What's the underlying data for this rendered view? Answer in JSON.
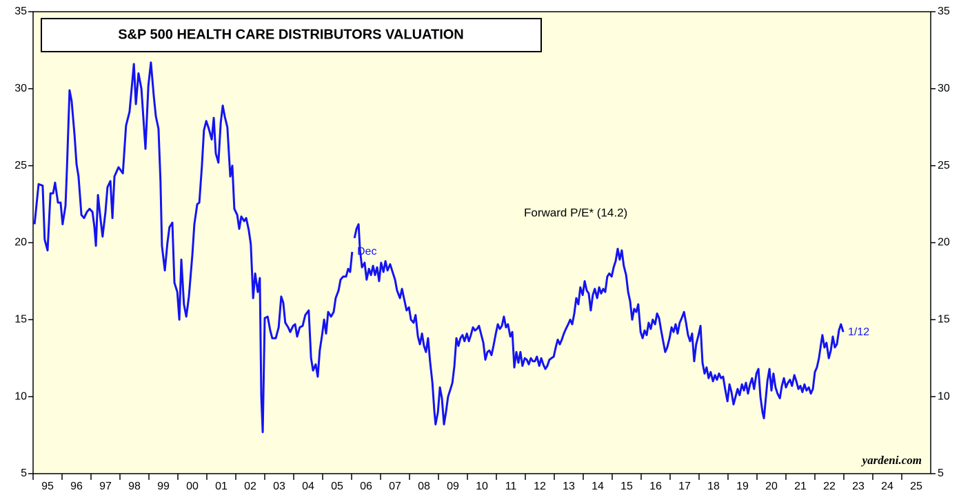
{
  "chart_data": {
    "type": "line",
    "title": "S&P 500 HEALTH CARE DISTRIBUTORS VALUATION",
    "annotations": [
      "Forward P/E* (14.2)",
      "Dec",
      "1/12",
      "yardeni.com"
    ],
    "xlim": [
      1995,
      2026
    ],
    "xticks": [
      {
        "value": 1995,
        "label": "95"
      },
      {
        "value": 1996,
        "label": "96"
      },
      {
        "value": 1997,
        "label": "97"
      },
      {
        "value": 1998,
        "label": "98"
      },
      {
        "value": 1999,
        "label": "99"
      },
      {
        "value": 2000,
        "label": "00"
      },
      {
        "value": 2001,
        "label": "01"
      },
      {
        "value": 2002,
        "label": "02"
      },
      {
        "value": 2003,
        "label": "03"
      },
      {
        "value": 2004,
        "label": "04"
      },
      {
        "value": 2005,
        "label": "05"
      },
      {
        "value": 2006,
        "label": "06"
      },
      {
        "value": 2007,
        "label": "07"
      },
      {
        "value": 2008,
        "label": "08"
      },
      {
        "value": 2009,
        "label": "09"
      },
      {
        "value": 2010,
        "label": "10"
      },
      {
        "value": 2011,
        "label": "11"
      },
      {
        "value": 2012,
        "label": "12"
      },
      {
        "value": 2013,
        "label": "13"
      },
      {
        "value": 2014,
        "label": "14"
      },
      {
        "value": 2015,
        "label": "15"
      },
      {
        "value": 2016,
        "label": "16"
      },
      {
        "value": 2017,
        "label": "17"
      },
      {
        "value": 2018,
        "label": "18"
      },
      {
        "value": 2019,
        "label": "19"
      },
      {
        "value": 2020,
        "label": "20"
      },
      {
        "value": 2021,
        "label": "21"
      },
      {
        "value": 2022,
        "label": "22"
      },
      {
        "value": 2023,
        "label": "23"
      },
      {
        "value": 2024,
        "label": "24"
      },
      {
        "value": 2025,
        "label": "25"
      }
    ],
    "ylim": [
      5,
      35
    ],
    "yticks": [
      5,
      10,
      15,
      20,
      25,
      30,
      35
    ],
    "y2lim": [
      5,
      35
    ],
    "y2ticks": [
      5,
      10,
      15,
      20,
      25,
      30,
      35
    ],
    "x": [
      1995.05,
      1995.19,
      1995.33,
      1995.4,
      1995.5,
      1995.6,
      1995.69,
      1995.76,
      1995.86,
      1995.95,
      1996.02,
      1996.12,
      1996.17,
      1996.26,
      1996.33,
      1996.43,
      1996.5,
      1996.57,
      1996.67,
      1996.76,
      1996.86,
      1996.95,
      1997.05,
      1997.12,
      1997.17,
      1997.24,
      1997.33,
      1997.4,
      1997.5,
      1997.57,
      1997.67,
      1997.74,
      1997.81,
      1997.95,
      1998.1,
      1998.21,
      1998.33,
      1998.48,
      1998.55,
      1998.64,
      1998.74,
      1998.88,
      1998.98,
      1999.07,
      1999.17,
      1999.24,
      1999.33,
      1999.4,
      1999.45,
      1999.55,
      1999.64,
      1999.71,
      1999.81,
      1999.88,
      1999.98,
      2000.05,
      2000.12,
      2000.21,
      2000.29,
      2000.38,
      2000.5,
      2000.57,
      2000.67,
      2000.74,
      2000.83,
      2000.9,
      2000.98,
      2001.07,
      2001.17,
      2001.24,
      2001.31,
      2001.4,
      2001.48,
      2001.55,
      2001.62,
      2001.71,
      2001.81,
      2001.88,
      2001.95,
      2002.05,
      2002.12,
      2002.19,
      2002.29,
      2002.36,
      2002.45,
      2002.52,
      2002.6,
      2002.67,
      2002.76,
      2002.83,
      2002.88,
      2002.93,
      2003.0,
      2003.1,
      2003.19,
      2003.26,
      2003.38,
      2003.48,
      2003.57,
      2003.64,
      2003.71,
      2003.81,
      2003.88,
      2003.98,
      2004.05,
      2004.12,
      2004.21,
      2004.31,
      2004.4,
      2004.52,
      2004.6,
      2004.67,
      2004.76,
      2004.83,
      2004.9,
      2004.98,
      2005.05,
      2005.12,
      2005.19,
      2005.29,
      2005.38,
      2005.45,
      2005.55,
      2005.62,
      2005.71,
      2005.81,
      2005.88,
      2005.95,
      2006.02,
      2006.06,
      2006.1,
      2006.17,
      2006.24,
      2006.29,
      2006.36,
      2006.45,
      2006.52,
      2006.6,
      2006.67,
      2006.74,
      2006.81,
      2006.88,
      2006.95,
      2007.02,
      2007.1,
      2007.17,
      2007.24,
      2007.33,
      2007.43,
      2007.5,
      2007.57,
      2007.67,
      2007.74,
      2007.83,
      2007.9,
      2007.98,
      2008.05,
      2008.14,
      2008.21,
      2008.29,
      2008.36,
      2008.43,
      2008.5,
      2008.57,
      2008.64,
      2008.71,
      2008.79,
      2008.86,
      2008.9,
      2008.98,
      2009.05,
      2009.12,
      2009.19,
      2009.26,
      2009.33,
      2009.4,
      2009.48,
      2009.55,
      2009.62,
      2009.69,
      2009.76,
      2009.83,
      2009.9,
      2009.98,
      2010.05,
      2010.12,
      2010.19,
      2010.26,
      2010.33,
      2010.4,
      2010.48,
      2010.55,
      2010.62,
      2010.69,
      2010.76,
      2010.83,
      2010.9,
      2010.98,
      2011.05,
      2011.12,
      2011.19,
      2011.26,
      2011.33,
      2011.4,
      2011.48,
      2011.55,
      2011.62,
      2011.69,
      2011.76,
      2011.83,
      2011.9,
      2011.98,
      2012.05,
      2012.12,
      2012.19,
      2012.26,
      2012.33,
      2012.4,
      2012.48,
      2012.55,
      2012.62,
      2012.69,
      2012.76,
      2012.83,
      2012.9,
      2012.98,
      2013.05,
      2013.12,
      2013.19,
      2013.26,
      2013.33,
      2013.4,
      2013.48,
      2013.55,
      2013.62,
      2013.69,
      2013.76,
      2013.83,
      2013.9,
      2013.98,
      2014.05,
      2014.12,
      2014.19,
      2014.26,
      2014.33,
      2014.4,
      2014.48,
      2014.55,
      2014.62,
      2014.69,
      2014.76,
      2014.83,
      2014.9,
      2014.98,
      2015.05,
      2015.12,
      2015.19,
      2015.26,
      2015.33,
      2015.4,
      2015.48,
      2015.55,
      2015.62,
      2015.69,
      2015.76,
      2015.83,
      2015.9,
      2015.98,
      2016.05,
      2016.12,
      2016.19,
      2016.26,
      2016.33,
      2016.4,
      2016.48,
      2016.55,
      2016.62,
      2016.69,
      2016.76,
      2016.83,
      2016.9,
      2016.98,
      2017.05,
      2017.12,
      2017.19,
      2017.26,
      2017.33,
      2017.4,
      2017.48,
      2017.55,
      2017.62,
      2017.69,
      2017.76,
      2017.83,
      2017.9,
      2017.98,
      2018.05,
      2018.12,
      2018.19,
      2018.26,
      2018.33,
      2018.4,
      2018.48,
      2018.55,
      2018.62,
      2018.69,
      2018.76,
      2018.83,
      2018.9,
      2018.98,
      2019.05,
      2019.12,
      2019.19,
      2019.26,
      2019.33,
      2019.4,
      2019.48,
      2019.55,
      2019.62,
      2019.69,
      2019.76,
      2019.83,
      2019.9,
      2019.98,
      2020.05,
      2020.12,
      2020.19,
      2020.24,
      2020.29,
      2020.36,
      2020.43,
      2020.5,
      2020.57,
      2020.64,
      2020.71,
      2020.79,
      2020.86,
      2020.93,
      2021.0,
      2021.07,
      2021.14,
      2021.21,
      2021.29,
      2021.36,
      2021.43,
      2021.5,
      2021.57,
      2021.64,
      2021.71,
      2021.79,
      2021.86,
      2021.93,
      2022.0,
      2022.07,
      2022.14,
      2022.21,
      2022.26,
      2022.33,
      2022.4,
      2022.48,
      2022.55,
      2022.62,
      2022.69,
      2022.76,
      2022.83,
      2022.9,
      2022.98
    ],
    "series": [
      {
        "name": "Forward P/E",
        "color": "#1414f0",
        "values": [
          21.2,
          23.8,
          23.7,
          20.2,
          19.5,
          23.2,
          23.2,
          23.9,
          22.6,
          22.6,
          21.2,
          22.4,
          24.8,
          29.9,
          29.2,
          27.0,
          25.1,
          24.3,
          21.8,
          21.6,
          22.0,
          22.2,
          22.0,
          21.0,
          19.8,
          23.1,
          21.5,
          20.4,
          22.0,
          23.6,
          24.0,
          21.6,
          24.3,
          24.9,
          24.5,
          27.6,
          28.5,
          31.6,
          29.0,
          31.0,
          30.0,
          26.1,
          30.2,
          31.7,
          29.5,
          28.2,
          27.4,
          24.0,
          19.8,
          18.2,
          20.0,
          21.0,
          21.3,
          17.4,
          16.8,
          15.0,
          18.9,
          16.0,
          15.2,
          16.5,
          19.2,
          21.2,
          22.5,
          22.6,
          25.0,
          27.3,
          27.9,
          27.4,
          26.7,
          28.1,
          25.8,
          25.2,
          27.8,
          28.9,
          28.2,
          27.5,
          24.3,
          25.0,
          22.2,
          21.8,
          20.9,
          21.7,
          21.4,
          21.6,
          20.8,
          19.9,
          16.4,
          18.0,
          16.8,
          17.7,
          10.0,
          7.7,
          15.1,
          15.2,
          14.3,
          13.8,
          13.8,
          14.5,
          16.5,
          16.1,
          14.8,
          14.5,
          14.2,
          14.6,
          14.7,
          13.9,
          14.5,
          14.6,
          15.3,
          15.6,
          12.5,
          11.7,
          12.1,
          11.3,
          13.0,
          14.0,
          15.0,
          14.1,
          15.5,
          15.2,
          15.5,
          16.4,
          16.9,
          17.6,
          17.8,
          17.8,
          18.3,
          18.1,
          19.4,
          null,
          20.3,
          20.9,
          21.2,
          19.5,
          18.4,
          18.7,
          17.6,
          18.3,
          17.9,
          18.5,
          17.9,
          18.4,
          17.5,
          18.7,
          18.1,
          18.8,
          18.2,
          18.6,
          18.0,
          17.6,
          16.9,
          16.4,
          17.0,
          16.2,
          15.6,
          15.8,
          15.0,
          14.8,
          15.3,
          13.9,
          13.4,
          14.1,
          13.3,
          12.9,
          13.8,
          12.3,
          10.9,
          9.0,
          8.2,
          9.0,
          10.6,
          9.9,
          8.2,
          9.0,
          10.0,
          10.4,
          10.9,
          12.0,
          13.8,
          13.3,
          13.8,
          14.0,
          13.6,
          14.1,
          13.6,
          14.0,
          14.5,
          14.3,
          14.4,
          14.6,
          14.0,
          13.5,
          12.4,
          12.9,
          13.0,
          12.7,
          13.3,
          14.1,
          14.7,
          14.4,
          14.6,
          15.2,
          14.5,
          14.7,
          13.9,
          14.2,
          11.9,
          12.9,
          12.2,
          12.9,
          12.0,
          12.5,
          12.4,
          12.1,
          12.5,
          12.3,
          12.3,
          12.6,
          12.0,
          12.5,
          12.1,
          11.8,
          12.0,
          12.4,
          12.5,
          12.6,
          13.2,
          13.7,
          13.4,
          13.7,
          14.1,
          14.4,
          14.7,
          15.0,
          14.7,
          15.4,
          16.4,
          16.0,
          17.1,
          16.6,
          17.5,
          16.9,
          16.7,
          15.6,
          16.6,
          17.0,
          16.4,
          17.1,
          16.7,
          17.0,
          16.8,
          17.8,
          18.0,
          17.8,
          18.4,
          18.8,
          19.6,
          18.9,
          19.5,
          18.5,
          17.9,
          16.8,
          16.2,
          15.0,
          15.7,
          15.5,
          16.0,
          14.2,
          13.8,
          14.3,
          14.0,
          14.8,
          14.4,
          15.0,
          14.7,
          15.4,
          15.1,
          14.3,
          13.6,
          12.9,
          13.2,
          13.8,
          14.5,
          14.2,
          14.7,
          14.1,
          14.8,
          15.1,
          15.5,
          14.8,
          14.0,
          13.6,
          14.1,
          12.3,
          13.4,
          14.0,
          14.6,
          12.2,
          11.5,
          11.9,
          11.2,
          11.6,
          11.0,
          11.4,
          11.1,
          11.5,
          11.2,
          11.3,
          10.5,
          9.7,
          10.8,
          10.3,
          9.5,
          10.0,
          10.5,
          10.1,
          10.8,
          10.4,
          10.9,
          10.2,
          10.8,
          11.2,
          10.5,
          11.5,
          11.8,
          10.0,
          9.0,
          8.6,
          9.6,
          11.0,
          11.8,
          10.4,
          11.5,
          10.6,
          10.2,
          9.9,
          10.7,
          11.2,
          10.6,
          10.9,
          11.1,
          10.7,
          11.4,
          11.0,
          10.5,
          10.7,
          10.3,
          10.8,
          10.4,
          10.6,
          10.2,
          10.5,
          11.6,
          11.9,
          12.5,
          13.4,
          14.0,
          13.2,
          13.5,
          12.5,
          13.0,
          13.9,
          13.2,
          13.4,
          14.3,
          14.7,
          14.2
        ]
      }
    ]
  }
}
